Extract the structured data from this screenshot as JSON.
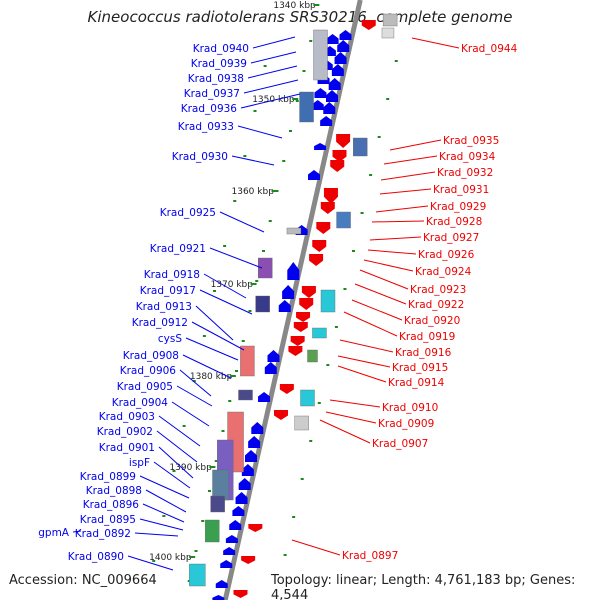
{
  "title": "Kineococcus radiotolerans SRS30216, complete genome",
  "accession": "Accession: NC_009664",
  "summary": "Topology: linear; Length: 4,761,183 bp; Genes: 4,544",
  "scale": [
    "1340 kbp",
    "1350 kbp",
    "1360 kbp",
    "1370 kbp",
    "1380 kbp",
    "1390 kbp",
    "1400 kbp"
  ],
  "colors": {
    "forward": "#0000ee",
    "reverse": "#ee0000",
    "backbone": "#888888",
    "tick": "#1a8a1a"
  },
  "left_labels": [
    "Krad_0940",
    "Krad_0939",
    "Krad_0938",
    "Krad_0937",
    "Krad_0936",
    "Krad_0933",
    "Krad_0930",
    "Krad_0925",
    "Krad_0921",
    "Krad_0918",
    "Krad_0917",
    "Krad_0913",
    "Krad_0912",
    "cysS",
    "Krad_0908",
    "Krad_0906",
    "Krad_0905",
    "Krad_0904",
    "Krad_0903",
    "Krad_0902",
    "Krad_0901",
    "ispF",
    "Krad_0899",
    "Krad_0898",
    "Krad_0896",
    "Krad_0895",
    "gpmA",
    "Krad_0892",
    "Krad_0890"
  ],
  "right_labels": [
    "Krad_0944",
    "Krad_0935",
    "Krad_0934",
    "Krad_0932",
    "Krad_0931",
    "Krad_0929",
    "Krad_0928",
    "Krad_0927",
    "Krad_0926",
    "Krad_0924",
    "Krad_0923",
    "Krad_0922",
    "Krad_0920",
    "Krad_0919",
    "Krad_0916",
    "Krad_0915",
    "Krad_0914",
    "Krad_0910",
    "Krad_0909",
    "Krad_0907",
    "Krad_0897"
  ]
}
